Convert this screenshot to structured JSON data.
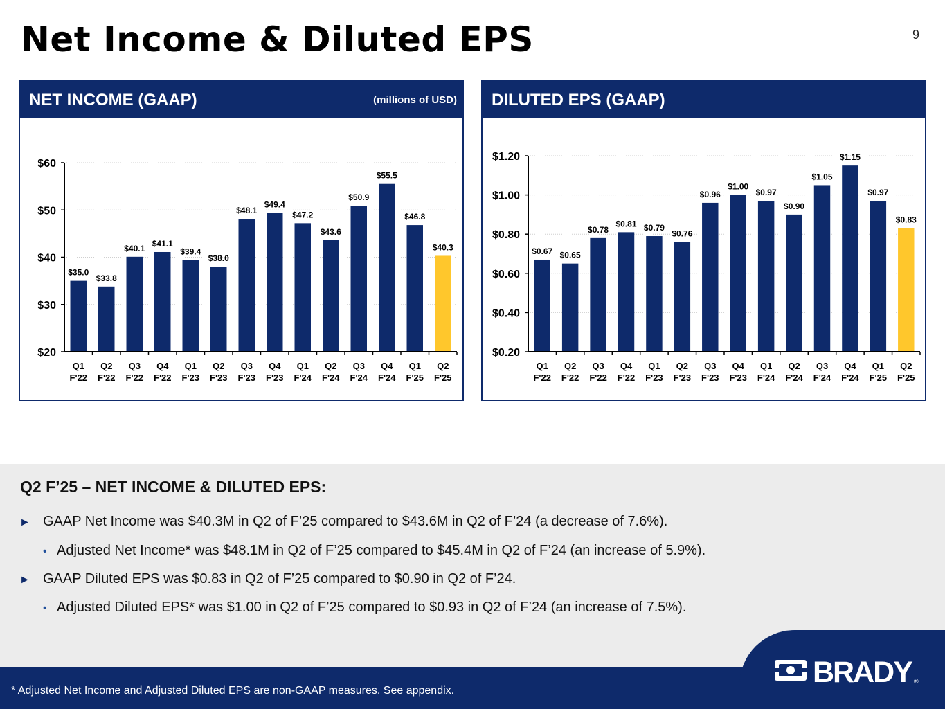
{
  "page": {
    "title": "Net Income & Diluted EPS",
    "page_number": "9",
    "summary_title": "Q2 F’25 – NET INCOME & DILUTED EPS:",
    "bullets": [
      "GAAP Net Income was $40.3M in Q2 of F’25 compared to $43.6M in Q2 of F’24 (a decrease of 7.6%).",
      "Adjusted Net Income* was $48.1M in Q2 of F’25 compared to $45.4M in Q2 of F’24 (an increase of 5.9%).",
      "GAAP Diluted EPS was $0.83 in Q2 of F’25 compared to $0.90 in Q2 of F’24.",
      "Adjusted Diluted EPS* was $1.00 in Q2 of F’25 compared to $0.93 in Q2 of F’24 (an increase of 7.5%)."
    ],
    "bullet_marks": {
      "primary": "►",
      "secondary": "•"
    },
    "footnote": "* Adjusted Net Income and Adjusted Diluted EPS are non-GAAP measures.  See appendix.",
    "logo_text": "BRADY",
    "logo_mark": "®"
  },
  "colors": {
    "navy": "#0e2a6b",
    "highlight": "#ffc72c"
  },
  "chart_data": [
    {
      "type": "bar",
      "title": "NET INCOME (GAAP)",
      "subtitle": "(millions of USD)",
      "categories": [
        "Q1\nF'22",
        "Q2\nF'22",
        "Q3\nF'22",
        "Q4\nF'22",
        "Q1\nF'23",
        "Q2\nF'23",
        "Q3\nF'23",
        "Q4\nF'23",
        "Q1\nF'24",
        "Q2\nF'24",
        "Q3\nF'24",
        "Q4\nF'24",
        "Q1\nF'25",
        "Q2\nF'25"
      ],
      "values": [
        35.0,
        33.8,
        40.1,
        41.1,
        39.4,
        38.0,
        48.1,
        49.4,
        47.2,
        43.6,
        50.9,
        55.5,
        46.8,
        40.3
      ],
      "data_labels": [
        "$35.0",
        "$33.8",
        "$40.1",
        "$41.1",
        "$39.4",
        "$38.0",
        "$48.1",
        "$49.4",
        "$47.2",
        "$43.6",
        "$50.9",
        "$55.5",
        "$46.8",
        "$40.3"
      ],
      "ylim": [
        20,
        60
      ],
      "yticks": [
        20,
        30,
        40,
        50,
        60
      ],
      "ytick_labels": [
        "$20",
        "$30",
        "$40",
        "$50",
        "$60"
      ],
      "highlight_index": 13,
      "grid": true
    },
    {
      "type": "bar",
      "title": "DILUTED EPS (GAAP)",
      "categories": [
        "Q1\nF'22",
        "Q2\nF'22",
        "Q3\nF'22",
        "Q4\nF'22",
        "Q1\nF'23",
        "Q2\nF'23",
        "Q3\nF'23",
        "Q4\nF'23",
        "Q1\nF'24",
        "Q2\nF'24",
        "Q3\nF'24",
        "Q4\nF'24",
        "Q1\nF'25",
        "Q2\nF'25"
      ],
      "values": [
        0.67,
        0.65,
        0.78,
        0.81,
        0.79,
        0.76,
        0.96,
        1.0,
        0.97,
        0.9,
        1.05,
        1.15,
        0.97,
        0.83
      ],
      "data_labels": [
        "$0.67",
        "$0.65",
        "$0.78",
        "$0.81",
        "$0.79",
        "$0.76",
        "$0.96",
        "$1.00",
        "$0.97",
        "$0.90",
        "$1.05",
        "$1.15",
        "$0.97",
        "$0.83"
      ],
      "ylim": [
        0.2,
        1.2
      ],
      "yticks": [
        0.2,
        0.4,
        0.6,
        0.8,
        1.0,
        1.2
      ],
      "ytick_labels": [
        "$0.20",
        "$0.40",
        "$0.60",
        "$0.80",
        "$1.00",
        "$1.20"
      ],
      "highlight_index": 13,
      "grid": true
    }
  ]
}
